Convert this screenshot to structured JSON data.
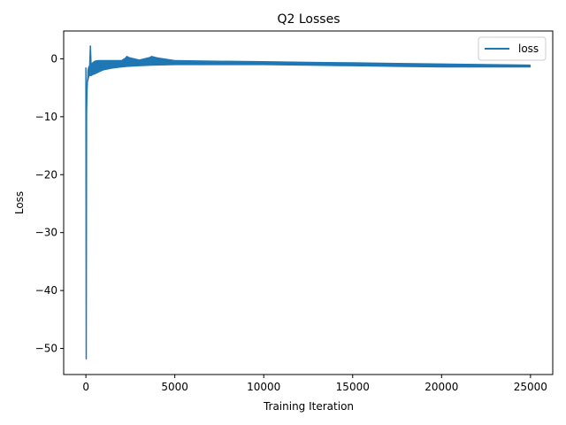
{
  "chart_data": {
    "type": "line",
    "title": "Q2 Losses",
    "xlabel": "Training Iteration",
    "ylabel": "Loss",
    "xlim": [
      -1250,
      26250
    ],
    "ylim": [
      -54.5,
      4.8
    ],
    "xticks": [
      0,
      5000,
      10000,
      15000,
      20000,
      25000
    ],
    "xtick_labels": [
      "0",
      "5000",
      "10000",
      "15000",
      "20000",
      "25000"
    ],
    "yticks": [
      0,
      -10,
      -20,
      -30,
      -40,
      -50
    ],
    "ytick_labels": [
      "0",
      "−10",
      "−20",
      "−30",
      "−40",
      "−50"
    ],
    "grid": false,
    "legend": {
      "position": "top-right",
      "entries": [
        "loss"
      ]
    },
    "colors": {
      "loss": "#1f77b4"
    },
    "series": [
      {
        "name": "loss",
        "x": [
          0,
          20,
          40,
          60,
          80,
          120,
          160,
          200,
          250,
          300,
          400,
          500,
          700,
          1000,
          1500,
          2000,
          2300,
          3000,
          3700,
          5000,
          7000,
          10000,
          12500,
          15000,
          17500,
          20000,
          22500,
          25000
        ],
        "values": [
          -1.5,
          -51.8,
          -9.5,
          -6.0,
          -4.0,
          -3.0,
          -2.5,
          -2.2,
          2.2,
          -2.0,
          -1.8,
          -1.5,
          -1.3,
          -1.5,
          -1.3,
          -1.2,
          0.4,
          -0.9,
          0.4,
          -0.7,
          -0.7,
          -0.7,
          -0.8,
          -0.9,
          -1.0,
          -1.1,
          -1.2,
          -1.3
        ],
        "band_low": [
          -1.5,
          -51.8,
          -9.5,
          -6.0,
          -5.0,
          -4.0,
          -3.5,
          -3.0,
          -3.0,
          -3.0,
          -2.8,
          -2.7,
          -2.4,
          -2.0,
          -1.7,
          -1.5,
          -1.4,
          -1.3,
          -1.2,
          -1.1,
          -1.1,
          -1.1,
          -1.2,
          -1.3,
          -1.4,
          -1.5,
          -1.5,
          -1.5
        ],
        "band_high": [
          -1.5,
          -51.8,
          -9.5,
          -6.0,
          -2.0,
          -1.5,
          -1.2,
          -1.0,
          2.2,
          -0.8,
          -0.5,
          -0.3,
          -0.2,
          -0.2,
          -0.2,
          -0.2,
          0.4,
          -0.1,
          0.4,
          -0.2,
          -0.3,
          -0.4,
          -0.5,
          -0.6,
          -0.7,
          -0.8,
          -0.9,
          -1.0
        ]
      }
    ]
  }
}
